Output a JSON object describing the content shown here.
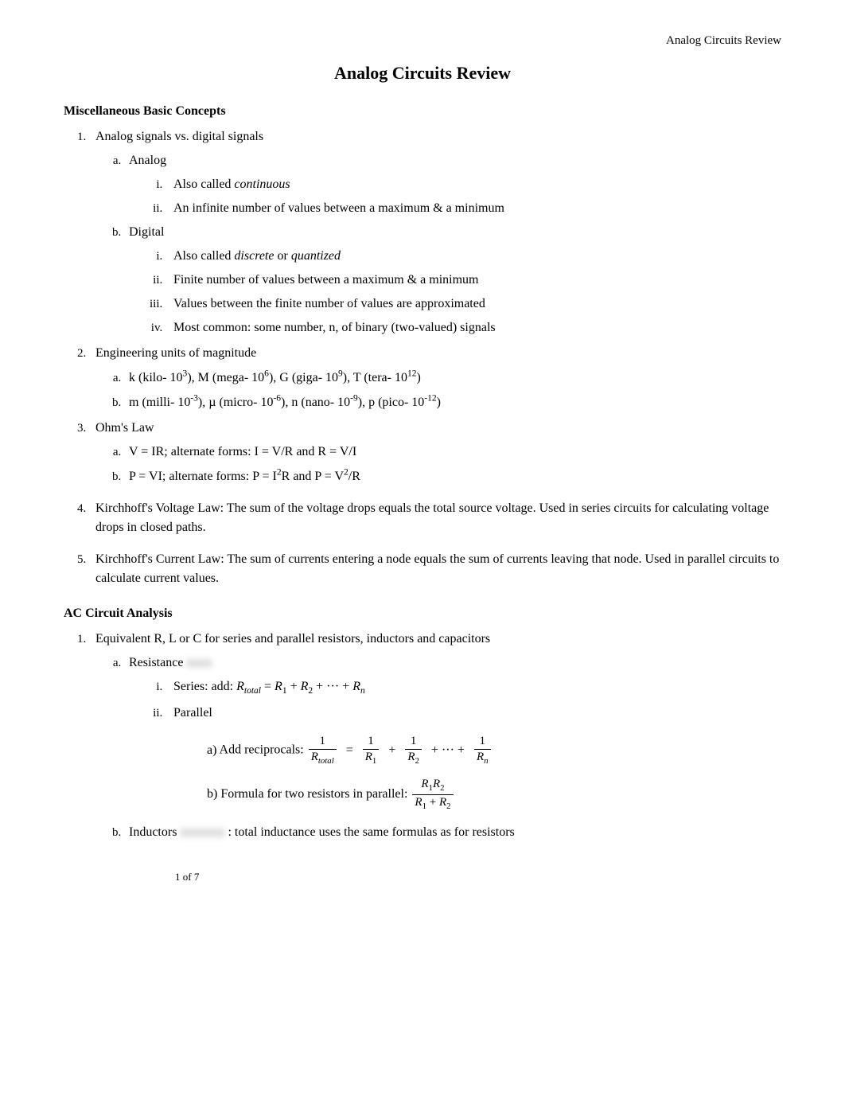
{
  "running_header": "Analog Circuits Review",
  "title": "Analog Circuits Review",
  "sections": {
    "misc": {
      "heading": "Miscellaneous Basic Concepts",
      "items": {
        "li1": "Analog signals vs. digital signals",
        "li1a": "Analog",
        "li1a_i": "Also called ",
        "li1a_i_em": "continuous",
        "li1a_ii": "An infinite number of values between a maximum & a minimum",
        "li1b": "Digital",
        "li1b_i_pre": "Also called ",
        "li1b_i_em1": "discrete",
        "li1b_i_mid": " or ",
        "li1b_i_em2": "quantized",
        "li1b_ii": "Finite number of values between a maximum & a minimum",
        "li1b_iii": "Values between the finite number of values are approximated",
        "li1b_iv": "Most common: some number, n, of binary (two-valued) signals",
        "li2": "Engineering units of magnitude",
        "li2a_html": "k (kilo- 10<sup>3</sup>), M (mega- 10<sup>6</sup>), G (giga- 10<sup>9</sup>), T (tera- 10<sup>12</sup>)",
        "li2b_html": "m (milli- 10<sup>-3</sup>), µ (micro- 10<sup>-6</sup>), n (nano- 10<sup>-9</sup>), p (pico- 10<sup>-12</sup>)",
        "li3": "Ohm's Law",
        "li3a": "V = IR; alternate forms: I = V/R and R = V/I",
        "li3b_html": "P = VI; alternate forms: P = I<sup>2</sup>R and P = V<sup>2</sup>/R",
        "li4": "Kirchhoff's Voltage Law: The sum of the voltage drops equals the total source voltage. Used in series circuits for calculating voltage drops in closed paths.",
        "li5": "Kirchhoff's Current Law: The sum of currents entering a node equals the sum of currents leaving that node. Used in parallel circuits to calculate current values."
      }
    },
    "ac": {
      "heading": "AC Circuit Analysis",
      "items": {
        "li1": "Equivalent R, L or C for series and parallel resistors, inductors and capacitors",
        "li1a": "Resistance",
        "li1a_blur": "xxxx",
        "li1a_i_pre": "Series: add: ",
        "li1a_i_eq_html": "<i>R<sub>total</sub></i> = <i>R</i><sub>1</sub> + <i>R</i><sub>2</sub> + ··· + <i>R<sub>n</sub></i>",
        "li1a_ii": "Parallel",
        "li1a_ii_a_pre": "Add reciprocals: ",
        "li1a_ii_b_pre": "Formula for two resistors in parallel:  ",
        "li1b": "Inductors",
        "li1b_blur": "xxxxxxx",
        "li1b_post": ": total inductance uses the same formulas as for resistors"
      }
    }
  },
  "equations": {
    "reciprocals": {
      "t1_num": "1",
      "t1_den_html": "<i>R<sub>total</sub></i>",
      "eq": "=",
      "t2_num": "1",
      "t2_den_html": "<i>R</i><sub>1</sub>",
      "plus": "+",
      "t3_num": "1",
      "t3_den_html": "<i>R</i><sub>2</sub>",
      "dots": "+ ··· +",
      "t4_num": "1",
      "t4_den_html": "<i>R<sub>n</sub></i>"
    },
    "two_parallel": {
      "num_html": "<i>R</i><sub>1</sub><i>R</i><sub>2</sub>",
      "den_html": "<i>R</i><sub>1</sub> + <i>R</i><sub>2</sub>"
    }
  },
  "footer": "1 of 7",
  "fonts": {
    "body_family": "Times New Roman",
    "body_size_pt": 12,
    "title_size_pt": 16,
    "heading_size_pt": 12
  },
  "colors": {
    "text": "#000000",
    "background": "#ffffff",
    "blur_shadow": "rgba(0,0,0,0.55)"
  }
}
